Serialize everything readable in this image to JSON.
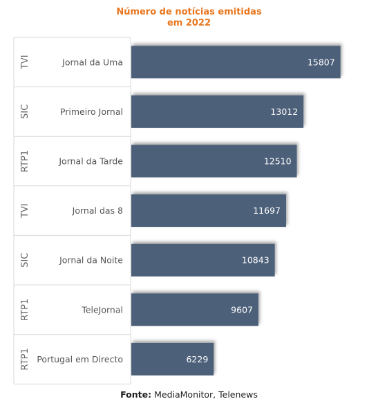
{
  "title": {
    "line1": "Número de notícias emitidas",
    "line2": "em 2022"
  },
  "source": {
    "label": "Fonte:",
    "text": "MediaMonitor, Telenews"
  },
  "colors": {
    "title": "#e8761e",
    "bar": "#4e6179",
    "bar_label": "#ffffff",
    "category_text": "#555555",
    "group_text": "#666666",
    "grid": "#d9d9d9"
  },
  "chart_data": {
    "type": "bar",
    "orientation": "horizontal",
    "title": "Número de notícias emitidas em 2022",
    "categories": [
      {
        "group": "TVI",
        "label": "Jornal da Uma"
      },
      {
        "group": "SIC",
        "label": "Primeiro Jornal"
      },
      {
        "group": "RTP1",
        "label": "Jornal da Tarde"
      },
      {
        "group": "TVI",
        "label": "Jornal das 8"
      },
      {
        "group": "SIC",
        "label": "Jornal da Noite"
      },
      {
        "group": "RTP1",
        "label": "TeleJornal"
      },
      {
        "group": "RTP1",
        "label": "Portugal em Directo"
      }
    ],
    "values": [
      15807,
      13012,
      12510,
      11697,
      10843,
      9607,
      6229
    ],
    "data_labels": [
      "15807",
      "13012",
      "12510",
      "11697",
      "10843",
      "9607",
      "6229"
    ],
    "xlim": [
      0,
      16500
    ],
    "grid": false,
    "legend": "none"
  }
}
